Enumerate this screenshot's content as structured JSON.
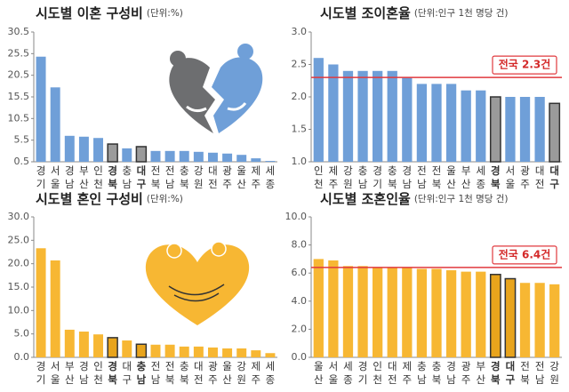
{
  "chart_data": [
    {
      "type": "bar",
      "title": "시도별 이혼 구성비",
      "unit": "(단위:%)",
      "categories": [
        "경기",
        "서울",
        "경남",
        "부산",
        "인천",
        "경북",
        "충남",
        "대구",
        "전북",
        "전남",
        "충북",
        "강원",
        "대전",
        "광주",
        "울산",
        "제주",
        "세종"
      ],
      "values": [
        24.8,
        17.7,
        6.5,
        6.3,
        6.0,
        4.6,
        3.6,
        4.0,
        3.0,
        3.0,
        3.0,
        2.8,
        2.6,
        2.4,
        2.1,
        1.3,
        0.7
      ],
      "color": "#6f9fd8",
      "colors": [
        "#6f9fd8",
        "#6f9fd8",
        "#6f9fd8",
        "#6f9fd8",
        "#6f9fd8",
        "#9b9b9b",
        "#6f9fd8",
        "#9b9b9b",
        "#6f9fd8",
        "#6f9fd8",
        "#6f9fd8",
        "#6f9fd8",
        "#6f9fd8",
        "#6f9fd8",
        "#6f9fd8",
        "#6f9fd8",
        "#6f9fd8"
      ],
      "ylim": [
        0.5,
        30.5
      ],
      "yticks": [
        {
          "value": 0.5,
          "label": "0.5"
        },
        {
          "value": 5.5,
          "label": "5.5"
        },
        {
          "value": 10.5,
          "label": "10.5"
        },
        {
          "value": 15.5,
          "label": "15.5"
        },
        {
          "value": 20.5,
          "label": "20.5"
        },
        {
          "value": 25.5,
          "label": "25.5"
        },
        {
          "value": 30.5,
          "label": "30.5"
        }
      ]
    },
    {
      "type": "bar",
      "title": "시도별 조이혼율",
      "unit": "(단위:인구 1천 명당 건)",
      "categories": [
        "인천",
        "제주",
        "강원",
        "충남",
        "경기",
        "충북",
        "경남",
        "전남",
        "전북",
        "울산",
        "부산",
        "세종",
        "경북",
        "서울",
        "광주",
        "대전",
        "대구"
      ],
      "values": [
        2.6,
        2.5,
        2.4,
        2.4,
        2.4,
        2.4,
        2.3,
        2.2,
        2.2,
        2.2,
        2.1,
        2.1,
        2.0,
        2.0,
        2.0,
        2.0,
        1.9
      ],
      "color": "#6f9fd8",
      "colors": [
        "#6f9fd8",
        "#6f9fd8",
        "#6f9fd8",
        "#6f9fd8",
        "#6f9fd8",
        "#6f9fd8",
        "#6f9fd8",
        "#6f9fd8",
        "#6f9fd8",
        "#6f9fd8",
        "#6f9fd8",
        "#6f9fd8",
        "#9b9b9b",
        "#6f9fd8",
        "#6f9fd8",
        "#6f9fd8",
        "#9b9b9b"
      ],
      "ylim": [
        1.0,
        3.0
      ],
      "yticks": [
        {
          "value": 1.0,
          "label": "1.0"
        },
        {
          "value": 1.5,
          "label": "1.5"
        },
        {
          "value": 2.0,
          "label": "2.0"
        },
        {
          "value": 2.5,
          "label": "2.5"
        },
        {
          "value": 3.0,
          "label": "3.0"
        }
      ],
      "reference": {
        "value": 2.3,
        "label": "전국 2.3건",
        "color": "#e0393e"
      }
    },
    {
      "type": "bar",
      "title": "시도별 혼인 구성비",
      "unit": "(단위:%)",
      "categories": [
        "경기",
        "서울",
        "부산",
        "경남",
        "인천",
        "경북",
        "대구",
        "충남",
        "전남",
        "전북",
        "충북",
        "대전",
        "광주",
        "울산",
        "강원",
        "제주",
        "세종"
      ],
      "values": [
        23.3,
        20.7,
        5.9,
        5.5,
        4.9,
        4.2,
        3.6,
        2.8,
        2.7,
        2.7,
        2.3,
        2.3,
        2.1,
        1.9,
        1.9,
        1.5,
        0.9
      ],
      "color": "#f7b733",
      "colors": [
        "#f7b733",
        "#f7b733",
        "#f7b733",
        "#f7b733",
        "#f7b733",
        "#e8a41c",
        "#f7b733",
        "#e8a41c",
        "#f7b733",
        "#f7b733",
        "#f7b733",
        "#f7b733",
        "#f7b733",
        "#f7b733",
        "#f7b733",
        "#f7b733",
        "#f7b733"
      ],
      "ylim": [
        0,
        30
      ],
      "yticks": [
        {
          "value": 0,
          "label": "0.0"
        },
        {
          "value": 5,
          "label": "5.0"
        },
        {
          "value": 10,
          "label": "10.0"
        },
        {
          "value": 15,
          "label": "15.0"
        },
        {
          "value": 20,
          "label": "20.0"
        },
        {
          "value": 25,
          "label": "25.0"
        },
        {
          "value": 30,
          "label": "30.0"
        }
      ]
    },
    {
      "type": "bar",
      "title": "시도별 조혼인율",
      "unit": "(단위:인구 1천 명당 건)",
      "categories": [
        "울산",
        "서울",
        "세종",
        "경기",
        "인천",
        "대전",
        "제주",
        "충남",
        "충북",
        "경남",
        "광주",
        "부산",
        "경북",
        "대구",
        "전북",
        "전남",
        "강원"
      ],
      "values": [
        7.0,
        6.9,
        6.5,
        6.5,
        6.4,
        6.4,
        6.4,
        6.3,
        6.3,
        6.2,
        6.1,
        6.1,
        5.9,
        5.6,
        5.3,
        5.3,
        5.2
      ],
      "color": "#f7b733",
      "colors": [
        "#f7b733",
        "#f7b733",
        "#f7b733",
        "#f7b733",
        "#f7b733",
        "#f7b733",
        "#f7b733",
        "#f7b733",
        "#f7b733",
        "#f7b733",
        "#f7b733",
        "#f7b733",
        "#e8a41c",
        "#e8a41c",
        "#f7b733",
        "#f7b733",
        "#f7b733"
      ],
      "ylim": [
        0,
        10
      ],
      "yticks": [
        {
          "value": 0,
          "label": "0.0"
        },
        {
          "value": 2,
          "label": "2.0"
        },
        {
          "value": 4,
          "label": "4.0"
        },
        {
          "value": 6,
          "label": "6.0"
        },
        {
          "value": 8,
          "label": "8.0"
        },
        {
          "value": 10,
          "label": "10.0"
        }
      ],
      "reference": {
        "value": 6.4,
        "label": "전국 6.4건",
        "color": "#e0393e"
      }
    }
  ]
}
